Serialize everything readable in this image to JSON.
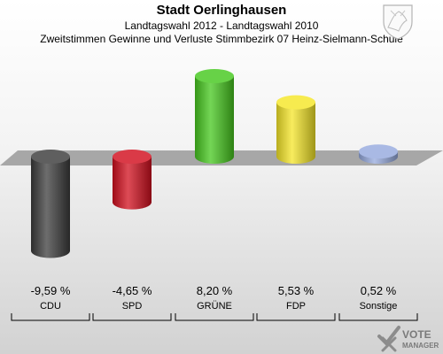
{
  "header": {
    "title": "Stadt Oerlinghausen",
    "subtitle": "Landtagswahl 2012 - Landtagswahl 2010",
    "subtitle2": "Zweitstimmen Gewinne und Verluste Stimmbezirk 07 Heinz-Sielmann-Schule"
  },
  "logo": {
    "line1": "VOTE",
    "line2": "MANAGER",
    "icon": "checkmark-x-icon"
  },
  "crest": {
    "icon": "coat-of-arms-icon"
  },
  "chart_data": {
    "type": "bar",
    "title": "Stadt Oerlinghausen",
    "categories": [
      "CDU",
      "SPD",
      "GRÜNE",
      "FDP",
      "Sonstige"
    ],
    "values": [
      -9.59,
      -4.65,
      8.2,
      5.53,
      0.52
    ],
    "value_labels": [
      "-9,59 %",
      "-4,65 %",
      "8,20 %",
      "5,53 %",
      "0,52 %"
    ],
    "colors": [
      "#3c3c3c",
      "#d20f1e",
      "#46c81e",
      "#f5e628",
      "#96aade"
    ],
    "baseline": 0,
    "grid": false,
    "legend": "none"
  }
}
